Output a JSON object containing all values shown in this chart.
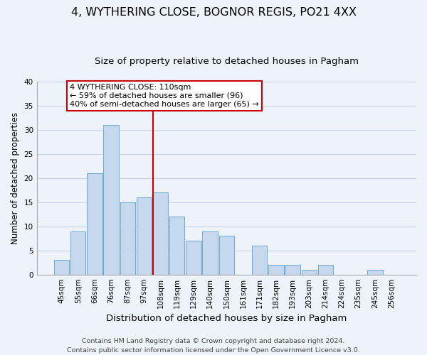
{
  "title": "4, WYTHERING CLOSE, BOGNOR REGIS, PO21 4XX",
  "subtitle": "Size of property relative to detached houses in Pagham",
  "xlabel": "Distribution of detached houses by size in Pagham",
  "ylabel": "Number of detached properties",
  "bin_labels": [
    "45sqm",
    "55sqm",
    "66sqm",
    "76sqm",
    "87sqm",
    "97sqm",
    "108sqm",
    "119sqm",
    "129sqm",
    "140sqm",
    "150sqm",
    "161sqm",
    "171sqm",
    "182sqm",
    "193sqm",
    "203sqm",
    "214sqm",
    "224sqm",
    "235sqm",
    "245sqm",
    "256sqm"
  ],
  "bin_values": [
    3,
    9,
    21,
    31,
    15,
    16,
    17,
    12,
    7,
    9,
    8,
    0,
    6,
    2,
    2,
    1,
    2,
    0,
    0,
    1,
    0
  ],
  "bar_color": "#c5d8ee",
  "bar_edge_color": "#6aaad4",
  "grid_color": "#c8d4e8",
  "background_color": "#eef2f9",
  "property_line_color": "#cc0000",
  "annotation_text": "4 WYTHERING CLOSE: 110sqm\n← 59% of detached houses are smaller (96)\n40% of semi-detached houses are larger (65) →",
  "annotation_box_color": "#ffffff",
  "annotation_box_edge": "#cc0000",
  "ylim": [
    0,
    40
  ],
  "yticks": [
    0,
    5,
    10,
    15,
    20,
    25,
    30,
    35,
    40
  ],
  "footnote": "Contains HM Land Registry data © Crown copyright and database right 2024.\nContains public sector information licensed under the Open Government Licence v3.0.",
  "title_fontsize": 11.5,
  "subtitle_fontsize": 9.5,
  "xlabel_fontsize": 9.5,
  "ylabel_fontsize": 8.5,
  "tick_fontsize": 7.5,
  "annotation_fontsize": 8.0,
  "footnote_fontsize": 6.8
}
